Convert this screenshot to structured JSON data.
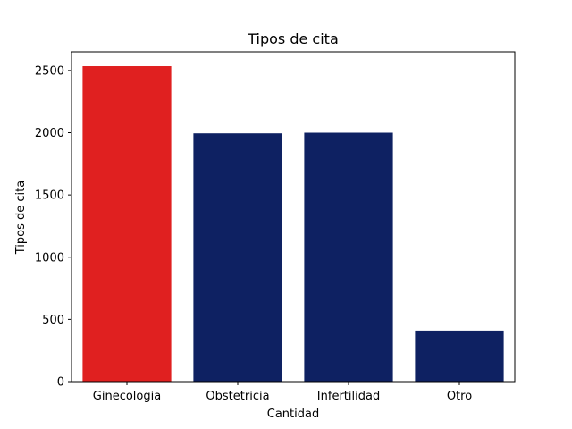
{
  "chart_data": {
    "type": "bar",
    "title": "Tipos de cita",
    "xlabel": "Cantidad",
    "ylabel": "Tipos de cita",
    "categories": [
      "Ginecologia",
      "Obstetricia",
      "Infertilidad",
      "Otro"
    ],
    "values": [
      2535,
      1995,
      2000,
      410
    ],
    "colors": [
      "#e02020",
      "#0e2162",
      "#0e2162",
      "#0e2162"
    ],
    "ylim": [
      0,
      2650
    ],
    "yticks": [
      0,
      500,
      1000,
      1500,
      2000,
      2500
    ],
    "grid": false,
    "legend": "none"
  }
}
